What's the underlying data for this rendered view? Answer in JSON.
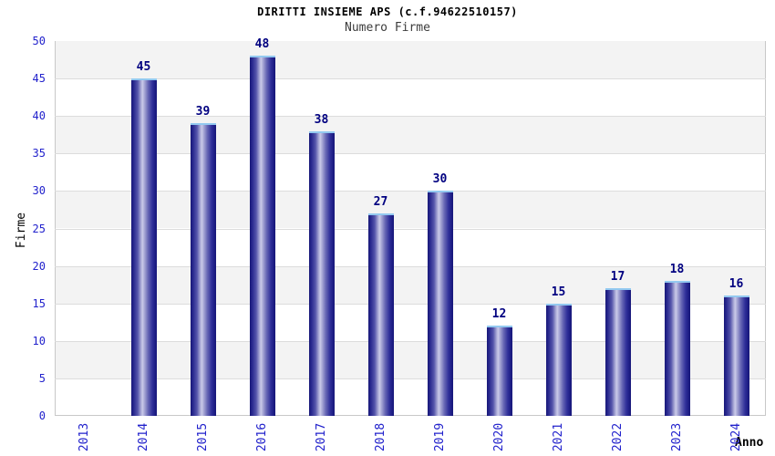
{
  "chart_data": {
    "type": "bar",
    "title": "DIRITTI INSIEME APS (c.f.94622510157)",
    "subtitle": "Numero Firme",
    "xlabel": "Anno",
    "ylabel": "Firme",
    "categories": [
      "2013",
      "2014",
      "2015",
      "2016",
      "2017",
      "2018",
      "2019",
      "2020",
      "2021",
      "2022",
      "2023",
      "2024"
    ],
    "values": [
      0,
      45,
      39,
      48,
      38,
      27,
      30,
      12,
      15,
      17,
      18,
      16
    ],
    "ylim": [
      0,
      50
    ],
    "ytick_step": 5,
    "grid": true,
    "legend_position": "none",
    "bands_alternating": true,
    "colors": {
      "bar_dark": "#181878",
      "bar_light": "#cacae9",
      "bar_top_border": "#93c9f0",
      "tick_label": "#2222cc",
      "value_label": "#000080",
      "band_gray": "#f3f3f3",
      "gridline": "#dcdcdc",
      "plot_border": "#c8c8c8",
      "title_color": "#000000",
      "subtitle_color": "#3c3c3c"
    }
  }
}
